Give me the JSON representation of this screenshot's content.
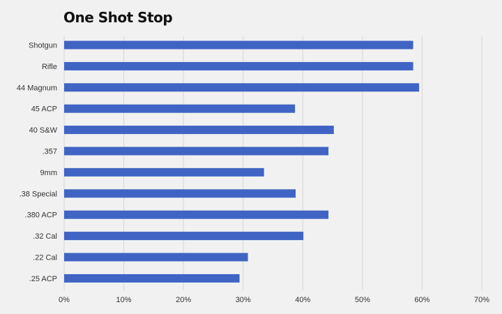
{
  "chart_data": {
    "type": "bar",
    "orientation": "horizontal",
    "title": "One Shot Stop",
    "categories": [
      "Shotgun",
      "Rifle",
      "44 Magnum",
      "45 ACP",
      "40 S&W",
      ".357",
      "9mm",
      ".38 Special",
      ".380 ACP",
      ".32 Cal",
      ".22 Cal",
      ".25 ACP"
    ],
    "values": [
      58.5,
      58.5,
      59.5,
      38.7,
      45.2,
      44.3,
      33.5,
      38.8,
      44.3,
      40.1,
      30.8,
      29.4
    ],
    "xlim": [
      0,
      70
    ],
    "x_ticks": [
      0,
      10,
      20,
      30,
      40,
      50,
      60,
      70
    ],
    "x_tick_labels": [
      "0%",
      "10%",
      "20%",
      "30%",
      "40%",
      "50%",
      "60%",
      "70%"
    ],
    "xlabel": "",
    "ylabel": "",
    "grid": "vertical",
    "bar_color": "#3f64c4",
    "grid_color": "#d6d6d6"
  }
}
